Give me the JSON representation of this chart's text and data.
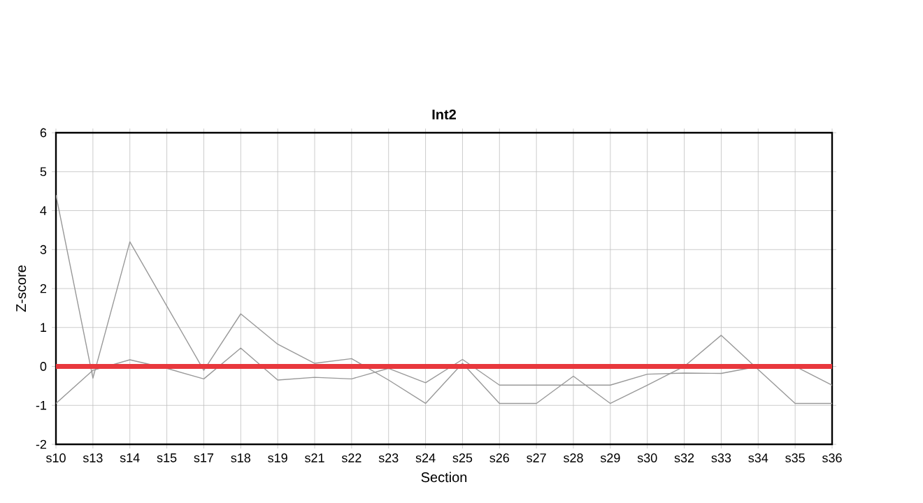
{
  "chart_data": {
    "type": "line",
    "title": "Int2",
    "xlabel": "Section",
    "ylabel": "Z-score",
    "categories": [
      "s10",
      "s13",
      "s14",
      "s15",
      "s17",
      "s18",
      "s19",
      "s21",
      "s22",
      "s23",
      "s24",
      "s25",
      "s26",
      "s27",
      "s28",
      "s29",
      "s30",
      "s32",
      "s33",
      "s34",
      "s35",
      "s36"
    ],
    "series": [
      {
        "color": "#999999",
        "values": [
          4.4,
          -0.3,
          3.2,
          1.55,
          -0.1,
          1.35,
          0.57,
          0.08,
          0.2,
          -0.35,
          -0.95,
          0.08,
          -0.95,
          -0.95,
          -0.25,
          -0.95,
          -0.48,
          0,
          0.8,
          -0.08,
          -0.95,
          -0.95
        ]
      },
      {
        "color": "#999999",
        "values": [
          -0.95,
          -0.1,
          0.17,
          -0.05,
          -0.32,
          0.47,
          -0.35,
          -0.28,
          -0.32,
          -0.05,
          -0.42,
          0.18,
          -0.48,
          -0.48,
          -0.48,
          -0.48,
          -0.2,
          -0.17,
          -0.18,
          0,
          0,
          -0.48
        ]
      }
    ],
    "ylim": [
      -2,
      6
    ],
    "yticks": [
      -2,
      -1,
      0,
      1,
      2,
      3,
      4,
      5,
      6
    ],
    "grid": true,
    "marker": "none",
    "line_style": "solid",
    "ref_lines": [
      {
        "axis": "y",
        "value": 0,
        "color": "#e8383d"
      }
    ]
  }
}
